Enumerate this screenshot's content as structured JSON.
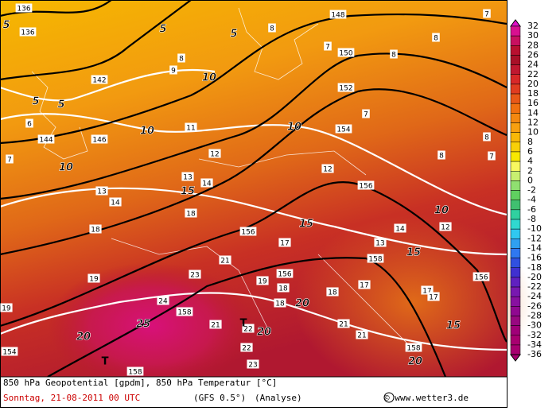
{
  "map": {
    "geopotential_labels": [
      "136",
      "136",
      "142",
      "144",
      "146",
      "148",
      "150",
      "152",
      "154",
      "156",
      "156",
      "156",
      "158",
      "158",
      "158",
      "158",
      "156",
      "154"
    ],
    "temperature_labels": [
      "5",
      "5",
      "5",
      "5",
      "5",
      "10",
      "10",
      "10",
      "10",
      "10",
      "15",
      "15",
      "15",
      "15",
      "20",
      "20",
      "20",
      "20",
      "25"
    ],
    "value_labels": [
      "8",
      "7",
      "8",
      "8",
      "7",
      "9",
      "8",
      "6",
      "7",
      "11",
      "12",
      "13",
      "14",
      "13",
      "12",
      "14",
      "18",
      "18",
      "17",
      "19",
      "19",
      "23",
      "24",
      "22",
      "21",
      "21",
      "23",
      "22",
      "17",
      "18",
      "19",
      "18",
      "18",
      "21",
      "21",
      "17",
      "14",
      "13",
      "12",
      "17",
      "8",
      "8",
      "7",
      "7"
    ],
    "markers": [
      "T",
      "T"
    ]
  },
  "colorbar": {
    "values": [
      32,
      30,
      28,
      26,
      24,
      22,
      20,
      18,
      16,
      14,
      12,
      10,
      8,
      6,
      4,
      2,
      0,
      -2,
      -4,
      -6,
      -8,
      -10,
      -12,
      -14,
      -16,
      -18,
      -20,
      -22,
      -24,
      -26,
      -28,
      -30,
      -32,
      -34,
      -36
    ]
  },
  "footer": {
    "line1": "850 hPa Geopotential [gpdm], 850 hPa Temperatur [°C]",
    "date": "Sonntag, 21-08-2011  00 UTC",
    "model": "(GFS 0.5°)",
    "run": "(Analyse)",
    "credit": "© www.wetter3.de"
  }
}
